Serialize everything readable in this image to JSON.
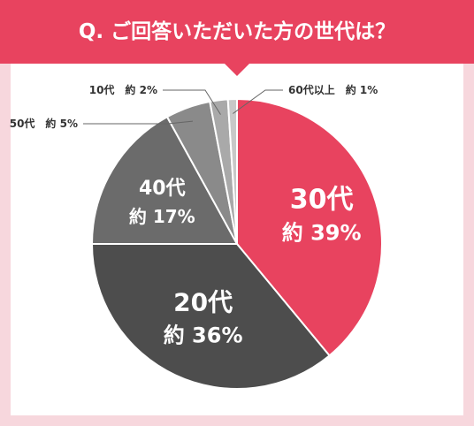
{
  "title": "Q. ご回答いただいた方の世代は？",
  "chart_data": {
    "type": "pie",
    "title": "Q. ご回答いただいた方の世代は？",
    "slices": [
      {
        "name": "30代",
        "value": 39,
        "label": "約 39%",
        "color": "#e8435f",
        "text_color": "#ffffff"
      },
      {
        "name": "20代",
        "value": 36,
        "label": "約 36%",
        "color": "#4d4d4d",
        "text_color": "#ffffff"
      },
      {
        "name": "40代",
        "value": 17,
        "label": "約 17%",
        "color": "#6b6b6b",
        "text_color": "#ffffff"
      },
      {
        "name": "50代",
        "value": 5,
        "label": "約 5%",
        "color": "#8a8a8a",
        "text_color": "#333333"
      },
      {
        "name": "10代",
        "value": 2,
        "label": "約 2%",
        "color": "#a9a9a9",
        "text_color": "#333333"
      },
      {
        "name": "60代以上",
        "value": 1,
        "label": "約 1%",
        "color": "#c8c8c8",
        "text_color": "#333333"
      }
    ]
  }
}
